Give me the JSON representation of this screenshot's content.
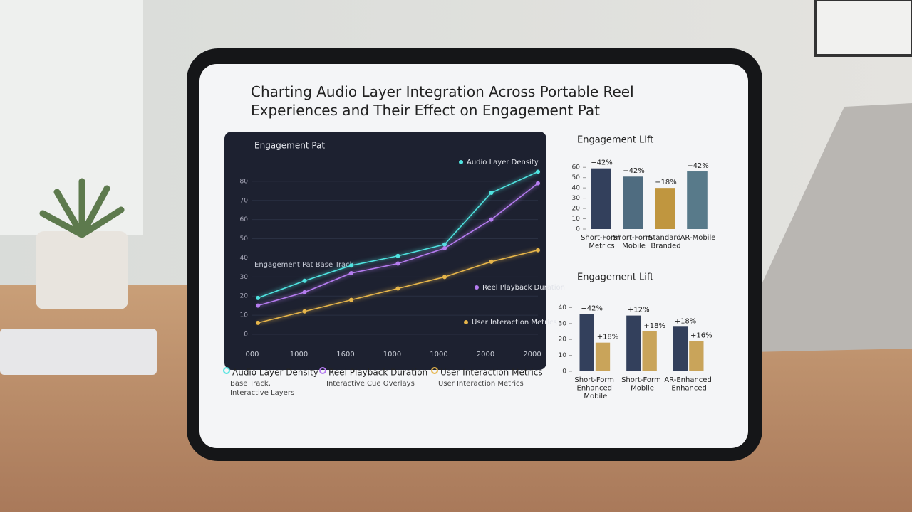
{
  "title": "Charting Audio Layer Integration Across Portable Reel Experiences and Their Effect on Engagement Pat",
  "legend_notes": [
    "Base Track, Interactive Layers",
    "Interactive Cue Overlays",
    "User Interaction Metrics"
  ],
  "chart_data": [
    {
      "type": "line",
      "title": "Engagement Pat",
      "annotation": "Engagement Pat Base Track",
      "categories": [
        "000",
        "1000",
        "1600",
        "1000",
        "1000",
        "2000",
        "2000"
      ],
      "ylim": [
        0,
        90
      ],
      "yticks": [
        0,
        10,
        20,
        30,
        40,
        50,
        60,
        70,
        80
      ],
      "series": [
        {
          "name": "Audio Layer Density",
          "color": "#4fe3e0",
          "values": [
            19,
            28,
            36,
            41,
            47,
            74,
            85
          ]
        },
        {
          "name": "Reel Playback Duration",
          "color": "#b57cf0",
          "values": [
            15,
            22,
            32,
            37,
            45,
            60,
            79
          ]
        },
        {
          "name": "User Interaction Metrics",
          "color": "#e6b54a",
          "values": [
            6,
            12,
            18,
            24,
            30,
            38,
            44
          ]
        }
      ]
    },
    {
      "type": "bar",
      "title": "Engagement Lift",
      "categories": [
        "Short-Form Metrics",
        "Short-Form Mobile",
        "Standard Branded",
        "AR-Mobile"
      ],
      "ylim": [
        0,
        65
      ],
      "yticks": [
        0,
        10,
        20,
        30,
        40,
        50,
        60
      ],
      "series": [
        {
          "colors": [
            "#33405c",
            "#4f6c80",
            "#c0963f",
            "#587a8a"
          ],
          "values": [
            59,
            51,
            40,
            56
          ],
          "annotations": [
            "+42%",
            "+42%",
            "+18%",
            "+42%"
          ]
        }
      ]
    },
    {
      "type": "bar",
      "title": "Engagement Lift",
      "categories": [
        "Short-Form Enhanced Mobile",
        "Short-Form Mobile",
        "AR-Enhanced Enhanced"
      ],
      "ylim": [
        0,
        50
      ],
      "yticks": [
        0,
        10,
        20,
        30,
        40
      ],
      "series": [
        {
          "color": "#33405c",
          "values": [
            36,
            35,
            28
          ],
          "annotations": [
            "+42%",
            "+12%",
            "+18%"
          ]
        },
        {
          "color": "#c9a45a",
          "values": [
            18,
            25,
            19
          ],
          "annotations": [
            "+18%",
            "+18%",
            "+16%"
          ]
        }
      ]
    }
  ]
}
